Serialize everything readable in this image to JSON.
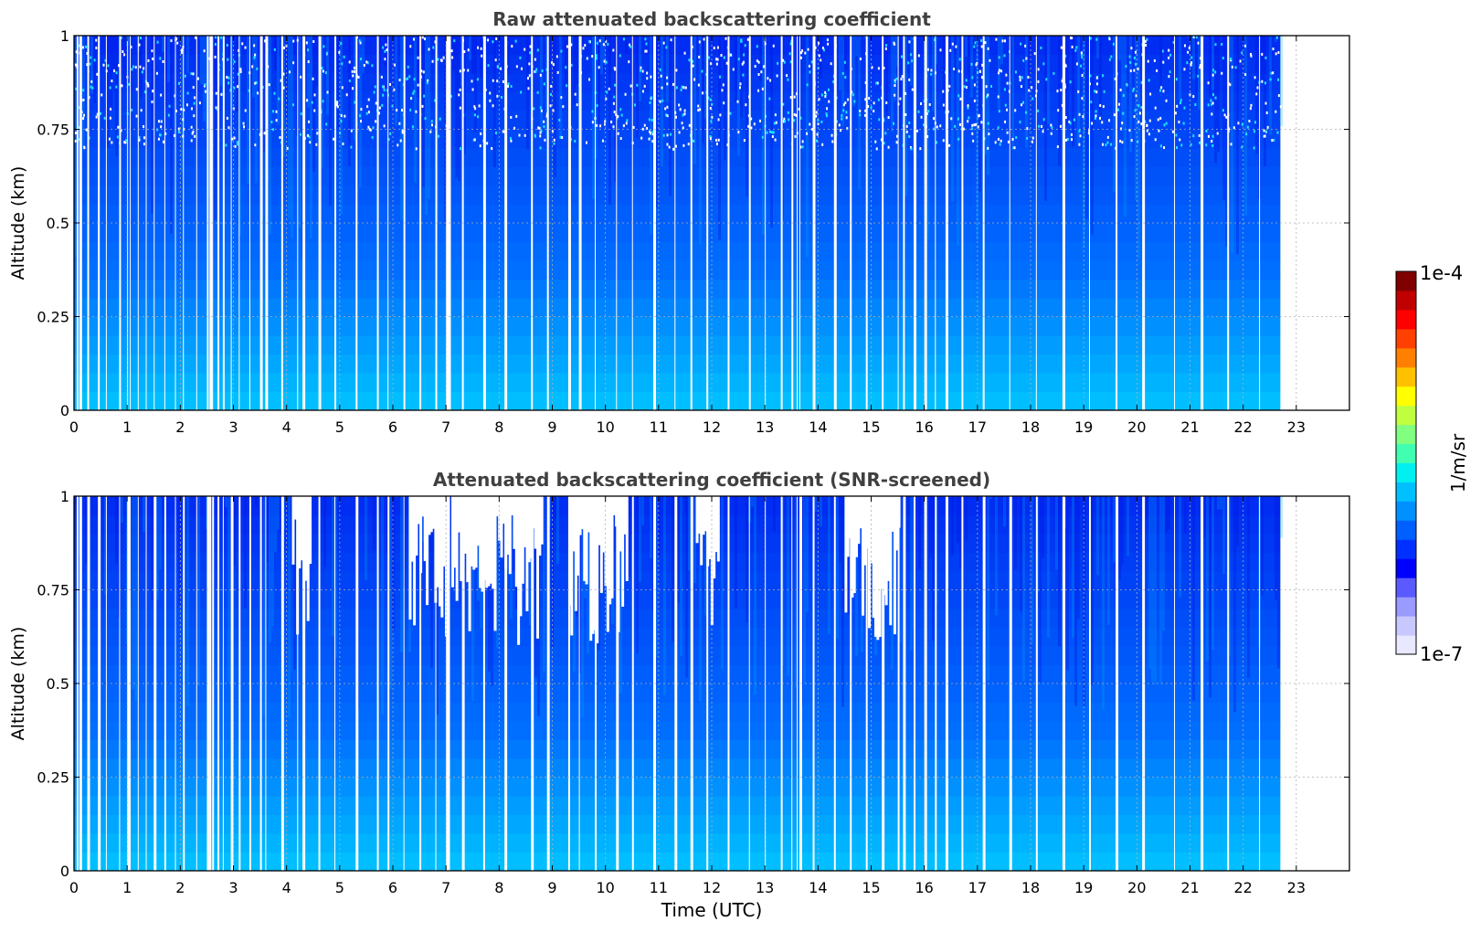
{
  "chart_data": [
    {
      "type": "heatmap",
      "title": "Raw attenuated backscattering coefficient",
      "xlabel": "",
      "ylabel": "Altitude (km)",
      "xlim": [
        0,
        24
      ],
      "ylim": [
        0,
        1
      ],
      "x_ticks": [
        "0",
        "1",
        "2",
        "3",
        "4",
        "5",
        "6",
        "7",
        "8",
        "9",
        "10",
        "11",
        "12",
        "13",
        "14",
        "15",
        "16",
        "17",
        "18",
        "19",
        "20",
        "21",
        "22",
        "23"
      ],
      "y_ticks": [
        "0",
        "0.25",
        "0.5",
        "0.75",
        "1"
      ],
      "data_end_hour": 22.7,
      "grid": true,
      "colorscale": "jet",
      "description_of_values": "backscatter roughly 1e-6 (cyan/blue) near ground decreasing to ~3e-7 (dark blue) aloft with noisy gaps"
    },
    {
      "type": "heatmap",
      "title": "Attenuated backscattering coefficient (SNR-screened)",
      "xlabel": "Time (UTC)",
      "ylabel": "Altitude (km)",
      "xlim": [
        0,
        24
      ],
      "ylim": [
        0,
        1
      ],
      "x_ticks": [
        "0",
        "1",
        "2",
        "3",
        "4",
        "5",
        "6",
        "7",
        "8",
        "9",
        "10",
        "11",
        "12",
        "13",
        "14",
        "15",
        "16",
        "17",
        "18",
        "19",
        "20",
        "21",
        "22",
        "23"
      ],
      "y_ticks": [
        "0",
        "0.25",
        "0.5",
        "0.75",
        "1"
      ],
      "data_end_hour": 22.7,
      "grid": true,
      "colorscale": "jet",
      "screened_regions_hours": [
        [
          4.1,
          4.45
        ],
        [
          6.3,
          7.0
        ],
        [
          7.1,
          8.8
        ],
        [
          9.3,
          10.4
        ],
        [
          11.7,
          12.1
        ],
        [
          14.5,
          15.5
        ]
      ]
    }
  ],
  "colorbar": {
    "label": "1/m/sr",
    "max_label": "1e-4",
    "min_label": "1e-7",
    "colors": [
      "#e8e8ff",
      "#c8c8ff",
      "#9a9aff",
      "#5a5aff",
      "#0000ff",
      "#0030ff",
      "#0060ff",
      "#0090ff",
      "#00c0ff",
      "#00f0f0",
      "#40ffb0",
      "#80ff80",
      "#c0ff40",
      "#ffff00",
      "#ffc000",
      "#ff8000",
      "#ff4000",
      "#ff0000",
      "#c00000",
      "#800000"
    ]
  }
}
